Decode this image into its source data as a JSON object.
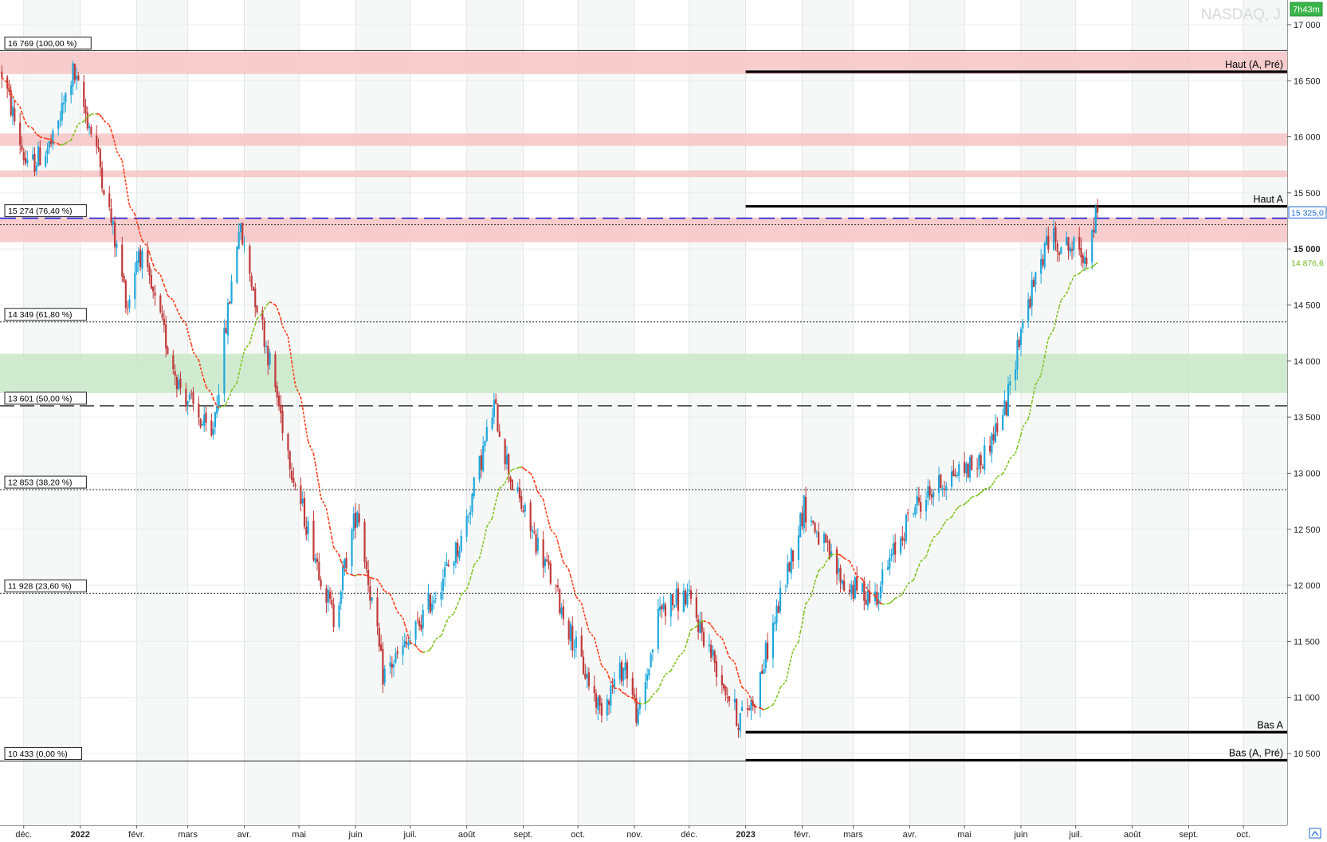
{
  "watermark": "NASDAQ, J",
  "timer_badge": "7h43m",
  "colors": {
    "up": "#1ea7dc",
    "down": "#c03a3a",
    "resistance_zone": "#f6c4c4",
    "support_zone": "#c9e7c9",
    "ma_up": "#7ec41c",
    "ma_down": "#ff3a14",
    "fib_level": "#222222",
    "blue_level": "#1c1cd6",
    "last_price_label": "#1c66d6",
    "ma_label": "#6cb81a",
    "timer_bg": "#39b54a"
  },
  "chart_data": {
    "type": "candlestick",
    "title": "NASDAQ, J",
    "x_axis": {
      "labels": [
        "déc.",
        "2022",
        "févr.",
        "mars",
        "avr.",
        "mai",
        "juin",
        "juil.",
        "août",
        "sept.",
        "oct.",
        "nov.",
        "déc.",
        "2023",
        "févr.",
        "mars",
        "avr.",
        "mai",
        "juin",
        "juil.",
        "août",
        "sept.",
        "oct."
      ],
      "bold_labels": [
        "2022",
        "2023"
      ],
      "label_dates": [
        "2021-12-01",
        "2022-01-01",
        "2022-02-01",
        "2022-03-01",
        "2022-04-01",
        "2022-05-01",
        "2022-06-01",
        "2022-07-01",
        "2022-08-01",
        "2022-09-01",
        "2022-10-01",
        "2022-11-01",
        "2022-12-01",
        "2023-01-01",
        "2023-02-01",
        "2023-03-01",
        "2023-04-01",
        "2023-05-01",
        "2023-06-01",
        "2023-07-01",
        "2023-08-01",
        "2023-09-01",
        "2023-10-01"
      ],
      "range": [
        "2021-11-18",
        "2023-10-25"
      ]
    },
    "y_axis": {
      "ticks": [
        17000,
        16500,
        16000,
        15500,
        15000,
        14500,
        14000,
        13500,
        13000,
        12500,
        12000,
        11500,
        11000,
        10500
      ],
      "tick_labels": [
        "17 000",
        "16 500",
        "16 000",
        "15 500",
        "15 000",
        "14 500",
        "14 000",
        "13 500",
        "13 000",
        "12 500",
        "12 000",
        "11 500",
        "11 000",
        "10 500"
      ],
      "bold_tick": "15 000",
      "range": [
        9860,
        17220
      ],
      "side": "right"
    },
    "price_path": [
      {
        "date": "2021-11-19",
        "value": 16573
      },
      {
        "date": "2021-12-03",
        "value": 15712
      },
      {
        "date": "2021-12-17",
        "value": 15950
      },
      {
        "date": "2021-12-28",
        "value": 16573
      },
      {
        "date": "2022-01-10",
        "value": 15900
      },
      {
        "date": "2022-01-27",
        "value": 14500
      },
      {
        "date": "2022-02-02",
        "value": 15000
      },
      {
        "date": "2022-02-24",
        "value": 13800
      },
      {
        "date": "2022-03-14",
        "value": 13300
      },
      {
        "date": "2022-03-29",
        "value": 15200
      },
      {
        "date": "2022-04-11",
        "value": 14300
      },
      {
        "date": "2022-04-29",
        "value": 12900
      },
      {
        "date": "2022-05-20",
        "value": 11700
      },
      {
        "date": "2022-06-02",
        "value": 12700
      },
      {
        "date": "2022-06-16",
        "value": 11200
      },
      {
        "date": "2022-07-01",
        "value": 11500
      },
      {
        "date": "2022-07-29",
        "value": 12400
      },
      {
        "date": "2022-08-16",
        "value": 13600
      },
      {
        "date": "2022-08-26",
        "value": 12900
      },
      {
        "date": "2022-09-13",
        "value": 12200
      },
      {
        "date": "2022-10-03",
        "value": 11300
      },
      {
        "date": "2022-10-13",
        "value": 10900
      },
      {
        "date": "2022-10-27",
        "value": 11300
      },
      {
        "date": "2022-11-03",
        "value": 10800
      },
      {
        "date": "2022-11-15",
        "value": 11800
      },
      {
        "date": "2022-11-30",
        "value": 11900
      },
      {
        "date": "2022-12-13",
        "value": 11400
      },
      {
        "date": "2022-12-28",
        "value": 10800
      },
      {
        "date": "2023-01-06",
        "value": 11000
      },
      {
        "date": "2023-02-02",
        "value": 12700
      },
      {
        "date": "2023-02-24",
        "value": 12000
      },
      {
        "date": "2023-03-13",
        "value": 11900
      },
      {
        "date": "2023-04-03",
        "value": 12700
      },
      {
        "date": "2023-04-25",
        "value": 13000
      },
      {
        "date": "2023-05-10",
        "value": 13100
      },
      {
        "date": "2023-05-24",
        "value": 13600
      },
      {
        "date": "2023-06-01",
        "value": 14300
      },
      {
        "date": "2023-06-16",
        "value": 15100
      },
      {
        "date": "2023-06-30",
        "value": 15000
      },
      {
        "date": "2023-07-07",
        "value": 14950
      },
      {
        "date": "2023-07-13",
        "value": 15325
      }
    ],
    "moving_average": {
      "label": "14 876,6",
      "last_value": 14876.6,
      "style": "dashed",
      "color_up": "#7ec41c",
      "color_down": "#ff3a14"
    },
    "last_price": {
      "value": 15325.0,
      "label": "15 325,0"
    },
    "fibonacci_levels": [
      {
        "value": 16769,
        "label": "16 769 (100,00 %)",
        "style": "solid"
      },
      {
        "value": 15274,
        "label": "15 274 (76,40 %)",
        "style": "dashed-blue"
      },
      {
        "value": 14349,
        "label": "14 349 (61,80 %)",
        "style": "dotted"
      },
      {
        "value": 13601,
        "label": "13 601 (50,00 %)",
        "style": "dashed"
      },
      {
        "value": 12853,
        "label": "12 853 (38,20 %)",
        "style": "dotted"
      },
      {
        "value": 11928,
        "label": "11 928 (23,60 %)",
        "style": "dotted"
      },
      {
        "value": 10433,
        "label": "10 433 (0,00 %)",
        "style": "solid"
      }
    ],
    "zones": [
      {
        "type": "resistance",
        "from": 16560,
        "to": 16760
      },
      {
        "type": "resistance",
        "from": 15920,
        "to": 16030
      },
      {
        "type": "resistance",
        "from": 15640,
        "to": 15700
      },
      {
        "type": "resistance",
        "from": 15060,
        "to": 15280
      },
      {
        "type": "support",
        "from": 13715,
        "to": 14065
      }
    ],
    "annotations": [
      {
        "label": "Haut (A, Pré)",
        "value": 16580,
        "start_date": "2023-01-01"
      },
      {
        "label": "Haut A",
        "value": 15380,
        "start_date": "2023-01-01"
      },
      {
        "label": "Bas A",
        "value": 10690,
        "start_date": "2023-01-01"
      },
      {
        "label": "Bas (A, Pré)",
        "value": 10440,
        "start_date": "2023-01-01"
      }
    ],
    "grid": true,
    "candle_count": 418
  }
}
